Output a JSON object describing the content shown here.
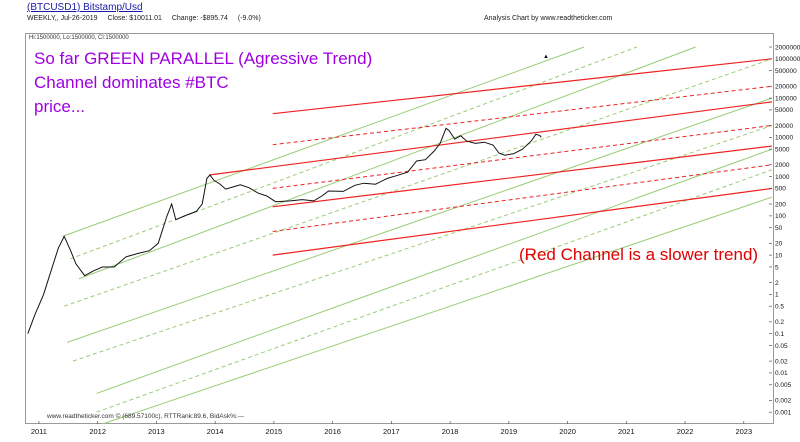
{
  "header": {
    "symbol": "(BTCUSD1) Bitstamp/Usd",
    "period": "WEEKLY,, Jul-26-2019",
    "close": "Close: $10011.01",
    "change": "Change: -$895.74",
    "change_pct": "(-9.0%)",
    "analysis": "Analysis Chart by www.readtheticker.com"
  },
  "hilo": "Hi:1500000, Lo:1500000, Cl:1500000",
  "footer": "www.readtheticker.com © (689.57100c), RTTRank:89.6, BidAsk%:---",
  "annotations": {
    "purple_lines": [
      "So far GREEN PARALLEL (Agressive Trend)",
      "Channel dominates #BTC",
      "price..."
    ],
    "red_note": "(Red Channel is a slower trend)"
  },
  "colors": {
    "green": "#99cc77",
    "red": "#ee2222",
    "price": "#111111",
    "purple": "#a000e0"
  },
  "chart_data": {
    "type": "line",
    "title": "(BTCUSD1) Bitstamp/Usd",
    "ylabel": "",
    "xlabel": "",
    "y_scale": "log",
    "ylim": [
      0.0005,
      2000000
    ],
    "xlim": [
      2010.8,
      2023.5
    ],
    "x_ticks": [
      "2011",
      "2012",
      "2013",
      "2014",
      "2015",
      "2016",
      "2017",
      "2018",
      "2019",
      "2020",
      "2021",
      "2022",
      "2023"
    ],
    "y_ticks": [
      "2000000",
      "1000000",
      "500000",
      "200000",
      "100000",
      "50000",
      "20000",
      "10000",
      "5000",
      "2000",
      "1000",
      "500",
      "200",
      "100",
      "50",
      "20",
      "10",
      "5",
      "2",
      "1",
      "0.5",
      "0.2",
      "0.1",
      "0.05",
      "0.02",
      "0.01",
      "0.005",
      "0.002",
      "0.001"
    ],
    "series": [
      {
        "type": "price",
        "points": [
          [
            2010.83,
            0.1
          ],
          [
            2010.95,
            0.3
          ],
          [
            2011.1,
            1.0
          ],
          [
            2011.2,
            3
          ],
          [
            2011.35,
            15
          ],
          [
            2011.45,
            30
          ],
          [
            2011.55,
            14
          ],
          [
            2011.65,
            6
          ],
          [
            2011.8,
            3
          ],
          [
            2011.95,
            4
          ],
          [
            2012.1,
            5
          ],
          [
            2012.3,
            5
          ],
          [
            2012.5,
            9
          ],
          [
            2012.7,
            11
          ],
          [
            2012.9,
            13
          ],
          [
            2013.05,
            20
          ],
          [
            2013.2,
            100
          ],
          [
            2013.28,
            200
          ],
          [
            2013.35,
            80
          ],
          [
            2013.5,
            100
          ],
          [
            2013.7,
            130
          ],
          [
            2013.8,
            200
          ],
          [
            2013.88,
            900
          ],
          [
            2013.93,
            1100
          ],
          [
            2014.0,
            800
          ],
          [
            2014.1,
            650
          ],
          [
            2014.2,
            480
          ],
          [
            2014.35,
            560
          ],
          [
            2014.45,
            620
          ],
          [
            2014.6,
            520
          ],
          [
            2014.75,
            380
          ],
          [
            2014.9,
            320
          ],
          [
            2015.05,
            230
          ],
          [
            2015.3,
            240
          ],
          [
            2015.5,
            260
          ],
          [
            2015.7,
            240
          ],
          [
            2015.85,
            330
          ],
          [
            2015.95,
            430
          ],
          [
            2016.2,
            420
          ],
          [
            2016.4,
            600
          ],
          [
            2016.55,
            680
          ],
          [
            2016.75,
            640
          ],
          [
            2016.95,
            900
          ],
          [
            2017.1,
            1050
          ],
          [
            2017.3,
            1300
          ],
          [
            2017.45,
            2500
          ],
          [
            2017.6,
            2700
          ],
          [
            2017.75,
            4500
          ],
          [
            2017.85,
            7000
          ],
          [
            2017.95,
            17000
          ],
          [
            2018.0,
            15000
          ],
          [
            2018.1,
            9000
          ],
          [
            2018.2,
            11000
          ],
          [
            2018.3,
            8000
          ],
          [
            2018.45,
            7000
          ],
          [
            2018.6,
            7500
          ],
          [
            2018.75,
            6400
          ],
          [
            2018.85,
            4000
          ],
          [
            2018.95,
            3500
          ],
          [
            2019.1,
            3800
          ],
          [
            2019.25,
            5000
          ],
          [
            2019.4,
            8000
          ],
          [
            2019.48,
            12000
          ],
          [
            2019.55,
            11000
          ],
          [
            2019.57,
            10000
          ]
        ]
      }
    ],
    "green_channel": {
      "solid": [
        [
          [
            2011.42,
            30
          ],
          [
            2020.3,
            2000000
          ]
        ],
        [
          [
            2011.7,
            2.5
          ],
          [
            2022.2,
            2000000
          ]
        ],
        [
          [
            2011.5,
            0.06
          ],
          [
            2023.5,
            100000
          ]
        ],
        [
          [
            2012.0,
            0.003
          ],
          [
            2023.5,
            5000
          ]
        ],
        [
          [
            2012.1,
            0.0005
          ],
          [
            2023.5,
            300
          ]
        ]
      ],
      "dashed": [
        [
          [
            2011.55,
            8
          ],
          [
            2021.2,
            2000000
          ]
        ],
        [
          [
            2011.45,
            0.5
          ],
          [
            2023.5,
            1000000
          ]
        ],
        [
          [
            2011.6,
            0.02
          ],
          [
            2023.5,
            20000
          ]
        ],
        [
          [
            2012.0,
            0.001
          ],
          [
            2023.5,
            1500
          ]
        ]
      ]
    },
    "red_channel": {
      "solid": [
        [
          [
            2015.0,
            40000
          ],
          [
            2023.5,
            1000000
          ]
        ],
        [
          [
            2013.92,
            1100
          ],
          [
            2023.5,
            80000
          ]
        ],
        [
          [
            2015.0,
            170
          ],
          [
            2023.5,
            6000
          ]
        ],
        [
          [
            2015.0,
            10
          ],
          [
            2023.5,
            500
          ]
        ]
      ],
      "dashed": [
        [
          [
            2015.0,
            6500
          ],
          [
            2023.5,
            200000
          ]
        ],
        [
          [
            2015.0,
            500
          ],
          [
            2023.5,
            20000
          ]
        ],
        [
          [
            2015.0,
            40
          ],
          [
            2023.5,
            2000
          ]
        ]
      ]
    }
  }
}
